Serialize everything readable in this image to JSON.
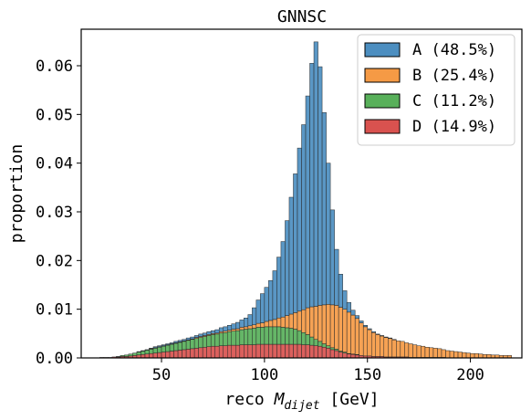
{
  "chart_data": {
    "type": "bar",
    "stacked": true,
    "histogram": true,
    "title": "GNNSC",
    "xlabel_prefix": "reco ",
    "xlabel_var": "M",
    "xlabel_sub": "dijet",
    "xlabel_suffix": " [GeV]",
    "ylabel": "proportion",
    "xlim": [
      11,
      225
    ],
    "ylim": [
      0,
      0.0675
    ],
    "x_ticks": [
      50,
      100,
      150,
      200
    ],
    "y_ticks": [
      0.0,
      0.01,
      0.02,
      0.03,
      0.04,
      0.05,
      0.06
    ],
    "y_tick_labels": [
      "0.00",
      "0.01",
      "0.02",
      "0.03",
      "0.04",
      "0.05",
      "0.06"
    ],
    "bin_start": 20,
    "bin_width": 2,
    "legend_position": "top-right",
    "colors": {
      "A": "#4c8ec0",
      "B": "#f59a45",
      "C": "#58b05a",
      "D": "#d9524f"
    },
    "series": [
      {
        "key": "A",
        "label": "A (48.5%)",
        "values": [
          0,
          0,
          0,
          0,
          0,
          0,
          0,
          0,
          0,
          0.0001,
          0.0001,
          0.0001,
          0.0001,
          0.0002,
          0.0002,
          0.0002,
          0.0002,
          0.0002,
          0.0003,
          0.0003,
          0.0003,
          0.0004,
          0.0004,
          0.0004,
          0.0005,
          0.0005,
          0.0006,
          0.0006,
          0.0007,
          0.0008,
          0.0009,
          0.001,
          0.0011,
          0.0013,
          0.0015,
          0.0018,
          0.0023,
          0.0035,
          0.0048,
          0.006,
          0.007,
          0.0082,
          0.01,
          0.0125,
          0.0155,
          0.0195,
          0.024,
          0.0285,
          0.0335,
          0.038,
          0.0435,
          0.05,
          0.0543,
          0.049,
          0.0395,
          0.029,
          0.0195,
          0.0115,
          0.0068,
          0.0038,
          0.002,
          0.001,
          0.0006,
          0.0004,
          0.0003,
          0.0002,
          0.0002,
          0.0001,
          0.0001,
          0.0001,
          0.0001,
          0.0001,
          0,
          0,
          0,
          0,
          0,
          0,
          0,
          0,
          0,
          0,
          0,
          0,
          0,
          0,
          0,
          0,
          0,
          0,
          0,
          0,
          0,
          0,
          0,
          0,
          0,
          0,
          0,
          0
        ]
      },
      {
        "key": "B",
        "label": "B (25.4%)",
        "values": [
          0,
          0,
          0,
          0,
          0,
          0,
          0,
          0,
          0,
          0,
          0,
          0,
          0.0001,
          0.0001,
          0.0001,
          0.0001,
          0.0001,
          0.0001,
          0.0001,
          0.0001,
          0.0001,
          0.0001,
          0.0001,
          0.0002,
          0.0002,
          0.0002,
          0.0002,
          0.0002,
          0.0002,
          0.0003,
          0.0003,
          0.0003,
          0.0004,
          0.0004,
          0.0005,
          0.0005,
          0.0006,
          0.0007,
          0.0008,
          0.0009,
          0.0011,
          0.0013,
          0.0015,
          0.0018,
          0.0021,
          0.0025,
          0.0029,
          0.0034,
          0.004,
          0.0047,
          0.0055,
          0.0062,
          0.0068,
          0.0074,
          0.008,
          0.0085,
          0.0088,
          0.009,
          0.009,
          0.0088,
          0.0085,
          0.008,
          0.0074,
          0.0067,
          0.006,
          0.0054,
          0.0049,
          0.0045,
          0.0042,
          0.004,
          0.0038,
          0.0035,
          0.0033,
          0.0032,
          0.0029,
          0.0028,
          0.0026,
          0.0024,
          0.0023,
          0.0021,
          0.002,
          0.0019,
          0.0018,
          0.0016,
          0.0015,
          0.0014,
          0.0013,
          0.0012,
          0.0011,
          0.001,
          0.0009,
          0.0009,
          0.0008,
          0.0007,
          0.0007,
          0.0006,
          0.0006,
          0.0005,
          0.0005,
          0.0005
        ]
      },
      {
        "key": "C",
        "label": "C (11.2%)",
        "values": [
          0,
          0,
          0,
          0,
          0.0001,
          0.0002,
          0.0003,
          0.0004,
          0.0005,
          0.0006,
          0.0007,
          0.0008,
          0.0009,
          0.001,
          0.0011,
          0.0012,
          0.0013,
          0.0014,
          0.0015,
          0.0016,
          0.0017,
          0.0018,
          0.0019,
          0.002,
          0.0021,
          0.0022,
          0.0023,
          0.0024,
          0.0025,
          0.0026,
          0.0027,
          0.0028,
          0.0029,
          0.003,
          0.0031,
          0.0032,
          0.0033,
          0.0034,
          0.0035,
          0.0035,
          0.0036,
          0.0036,
          0.0036,
          0.0036,
          0.0035,
          0.0034,
          0.0033,
          0.0031,
          0.0028,
          0.0025,
          0.0021,
          0.0017,
          0.0013,
          0.001,
          0.0007,
          0.0005,
          0.0004,
          0.0003,
          0.0002,
          0.0002,
          0.0001,
          0.0001,
          0.0001,
          0,
          0,
          0,
          0,
          0,
          0,
          0,
          0,
          0,
          0,
          0,
          0,
          0,
          0,
          0,
          0,
          0,
          0,
          0,
          0,
          0,
          0,
          0,
          0,
          0,
          0,
          0,
          0,
          0,
          0,
          0,
          0,
          0,
          0,
          0,
          0,
          0
        ]
      },
      {
        "key": "D",
        "label": "D (14.9%)",
        "values": [
          0.0001,
          0.0001,
          0.0001,
          0.0002,
          0.0002,
          0.0003,
          0.0003,
          0.0004,
          0.0005,
          0.0006,
          0.0007,
          0.0008,
          0.0009,
          0.001,
          0.0011,
          0.0012,
          0.0013,
          0.0014,
          0.0015,
          0.0016,
          0.0017,
          0.0018,
          0.0019,
          0.002,
          0.0021,
          0.0022,
          0.0023,
          0.0024,
          0.0024,
          0.0025,
          0.0025,
          0.0026,
          0.0026,
          0.0026,
          0.0027,
          0.0027,
          0.0027,
          0.0027,
          0.0028,
          0.0028,
          0.0028,
          0.0028,
          0.0028,
          0.0028,
          0.0028,
          0.0028,
          0.0028,
          0.0028,
          0.0028,
          0.0027,
          0.0027,
          0.0026,
          0.0025,
          0.0024,
          0.0022,
          0.002,
          0.0017,
          0.0015,
          0.0012,
          0.001,
          0.0008,
          0.0007,
          0.0006,
          0.0005,
          0.0004,
          0.0004,
          0.0003,
          0.0003,
          0.0003,
          0.0002,
          0.0002,
          0.0002,
          0.0002,
          0.0002,
          0.0002,
          0.0001,
          0.0001,
          0.0001,
          0.0001,
          0.0001,
          0.0001,
          0.0001,
          0.0001,
          0.0001,
          0,
          0,
          0,
          0,
          0,
          0,
          0,
          0,
          0,
          0,
          0,
          0,
          0,
          0,
          0,
          0
        ]
      }
    ]
  }
}
